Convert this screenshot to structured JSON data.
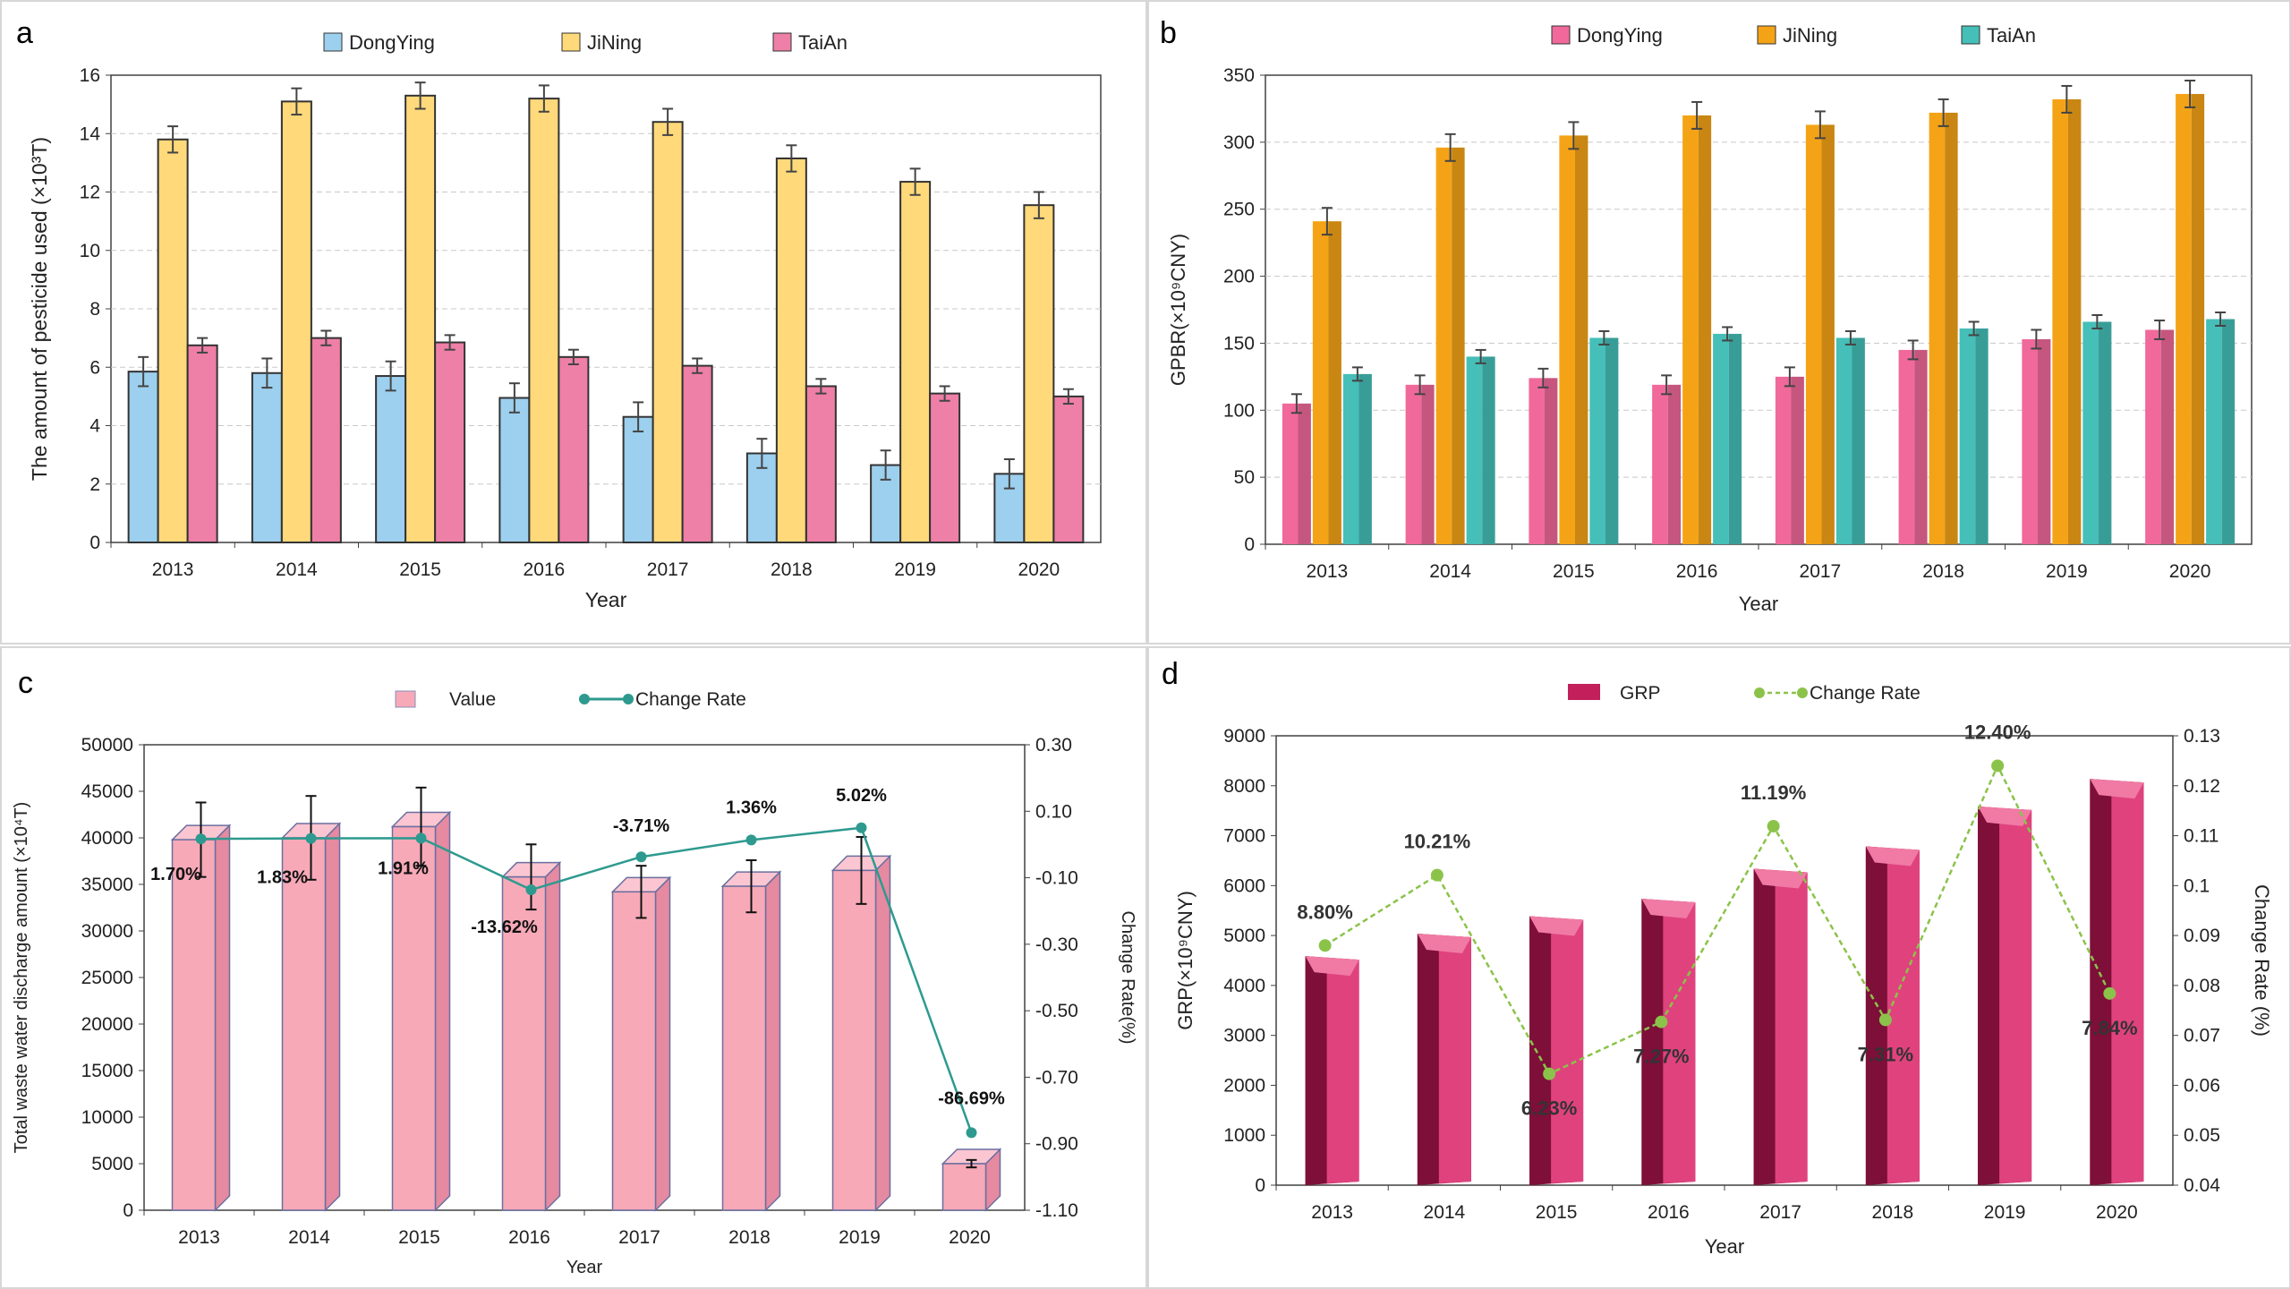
{
  "chart_data": [
    {
      "panel_letter": "a",
      "type": "bar",
      "categories": [
        "2013",
        "2014",
        "2015",
        "2016",
        "2017",
        "2018",
        "2019",
        "2020"
      ],
      "series": [
        {
          "name": "DongYing",
          "color": "#9dcfee",
          "values": [
            5.85,
            5.8,
            5.7,
            4.95,
            4.3,
            3.05,
            2.65,
            2.35
          ],
          "errors": [
            0.5,
            0.5,
            0.5,
            0.5,
            0.5,
            0.5,
            0.5,
            0.5
          ]
        },
        {
          "name": "JiNing",
          "color": "#ffd97a",
          "values": [
            13.8,
            15.1,
            15.3,
            15.2,
            14.4,
            13.15,
            12.35,
            11.55
          ],
          "errors": [
            0.45,
            0.45,
            0.45,
            0.45,
            0.45,
            0.45,
            0.45,
            0.45
          ]
        },
        {
          "name": "TaiAn",
          "color": "#ee7fa6",
          "values": [
            6.75,
            7.0,
            6.85,
            6.35,
            6.05,
            5.35,
            5.1,
            5.0
          ],
          "errors": [
            0.25,
            0.25,
            0.25,
            0.25,
            0.25,
            0.25,
            0.25,
            0.25
          ]
        }
      ],
      "xlabel": "Year",
      "ylabel": "The amount of pesticide used  (×10³T)",
      "ylim": [
        0,
        16
      ],
      "yticks": [
        "0",
        "2",
        "4",
        "6",
        "8",
        "10",
        "12",
        "14",
        "16"
      ],
      "grid": true,
      "legend": "top"
    },
    {
      "panel_letter": "b",
      "type": "bar",
      "categories": [
        "2013",
        "2014",
        "2015",
        "2016",
        "2017",
        "2018",
        "2019",
        "2020"
      ],
      "series": [
        {
          "name": "DongYing",
          "color": "#f0699a",
          "values": [
            105,
            119,
            124,
            119,
            125,
            145,
            153,
            160
          ],
          "errors": [
            7,
            7,
            7,
            7,
            7,
            7,
            7,
            7
          ]
        },
        {
          "name": "JiNing",
          "color": "#f5a316",
          "values": [
            241,
            296,
            305,
            320,
            313,
            322,
            332,
            336
          ],
          "errors": [
            10,
            10,
            10,
            10,
            10,
            10,
            10,
            10
          ]
        },
        {
          "name": "TaiAn",
          "color": "#45bfb8",
          "values": [
            127,
            140,
            154,
            157,
            154,
            161,
            166,
            168
          ],
          "errors": [
            5,
            5,
            5,
            5,
            5,
            5,
            5,
            5
          ]
        }
      ],
      "xlabel": "Year",
      "ylabel": "GPBR(×10⁹CNY)",
      "ylim": [
        0,
        350
      ],
      "yticks": [
        "0",
        "50",
        "100",
        "150",
        "200",
        "250",
        "300",
        "350"
      ],
      "grid": true,
      "legend": "top"
    },
    {
      "panel_letter": "c",
      "type": "bar",
      "categories": [
        "2013",
        "2014",
        "2015",
        "2016",
        "2017",
        "2018",
        "2019",
        "2020"
      ],
      "series": [
        {
          "name": "Value",
          "color": "#f7a9b8",
          "axis": "left",
          "values": [
            39800,
            40000,
            41200,
            35800,
            34200,
            34800,
            36500,
            5000
          ],
          "errors": [
            4000,
            4500,
            4200,
            3500,
            2800,
            2800,
            3600,
            400
          ]
        },
        {
          "name": "Change Rate",
          "color": "#2e9a8f",
          "axis": "right",
          "values": [
            0.017,
            0.0183,
            0.0191,
            -0.1362,
            -0.0371,
            0.0136,
            0.0502,
            -0.8669
          ]
        }
      ],
      "point_labels": [
        "1.70%",
        "1.83%",
        "1.91%",
        "-13.62%",
        "-3.71%",
        "1.36%",
        "5.02%",
        "-86.69%"
      ],
      "xlabel": "Year",
      "ylabel": "Total waste water discharge amount  (×10⁴T)",
      "y2label": "Change Rate(%)",
      "ylim": [
        0,
        50000
      ],
      "y2lim": [
        -1.1,
        0.3
      ],
      "yticks": [
        "0",
        "5000",
        "10000",
        "15000",
        "20000",
        "25000",
        "30000",
        "35000",
        "40000",
        "45000",
        "50000"
      ],
      "y2ticks": [
        "-1.10",
        "-0.90",
        "-0.70",
        "-0.50",
        "-0.30",
        "-0.10",
        "0.10",
        "0.30"
      ],
      "legend": "top"
    },
    {
      "panel_letter": "d",
      "type": "bar",
      "categories": [
        "2013",
        "2014",
        "2015",
        "2016",
        "2017",
        "2018",
        "2019",
        "2020"
      ],
      "series": [
        {
          "name": "GRP",
          "color": "#c21f5b",
          "axis": "left",
          "values": [
            4300,
            4750,
            5100,
            5450,
            6050,
            6500,
            7300,
            7850
          ]
        },
        {
          "name": "Change Rate",
          "color": "#8bc34a",
          "axis": "right",
          "values": [
            0.088,
            0.1021,
            0.0623,
            0.0727,
            0.1119,
            0.0731,
            0.124,
            0.0784
          ]
        }
      ],
      "point_labels": [
        "8.80%",
        "10.21%",
        "6.23%",
        "7.27%",
        "11.19%",
        "7.31%",
        "12.40%",
        "7.84%"
      ],
      "xlabel": "Year",
      "ylabel": "GRP(×10⁹CNY)",
      "y2label": "Change Rate  (%)",
      "ylim": [
        0,
        9000
      ],
      "y2lim": [
        0.04,
        0.13
      ],
      "yticks": [
        "0",
        "1000",
        "2000",
        "3000",
        "4000",
        "5000",
        "6000",
        "7000",
        "8000",
        "9000"
      ],
      "y2ticks": [
        "0.04",
        "0.05",
        "0.06",
        "0.07",
        "0.08",
        "0.09",
        "0.1",
        "0.11",
        "0.12",
        "0.13"
      ],
      "legend": "top"
    }
  ]
}
